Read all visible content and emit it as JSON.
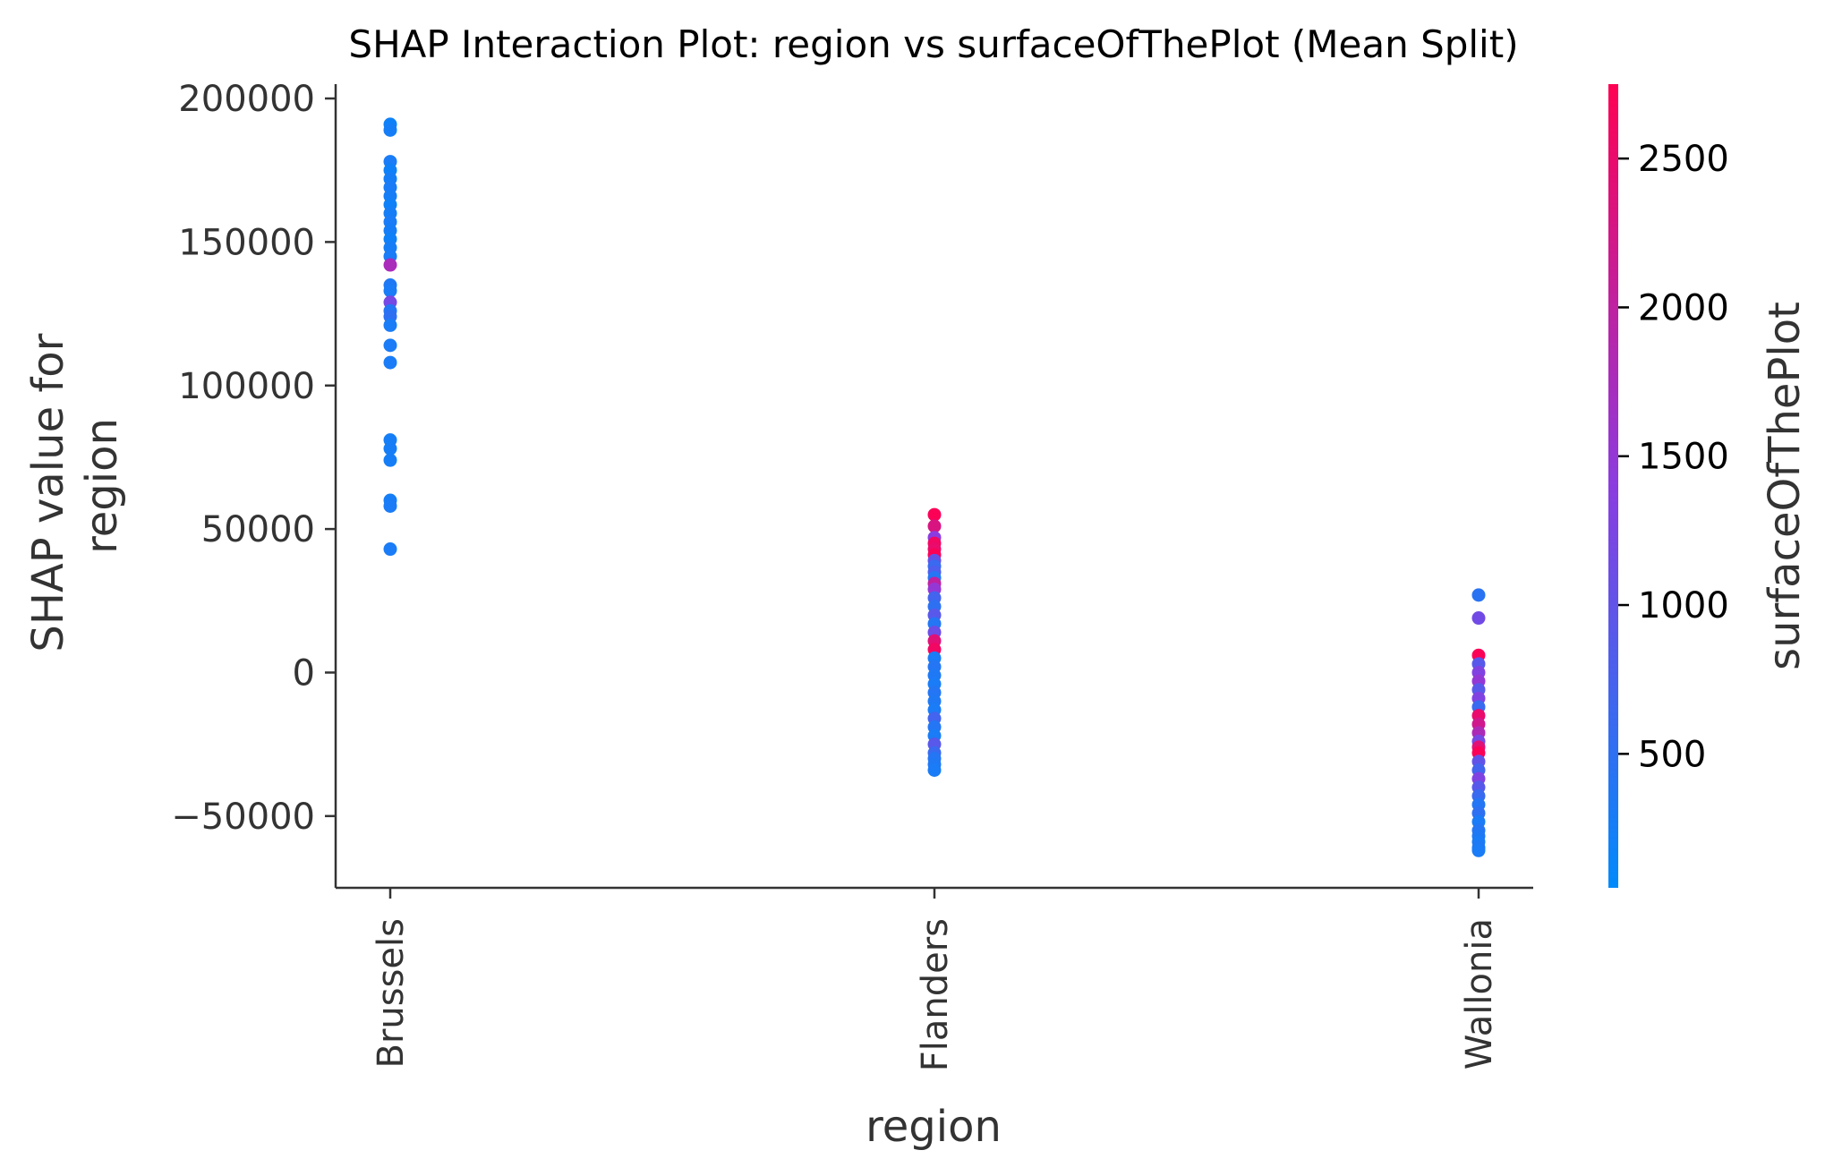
{
  "chart_data": {
    "type": "scatter",
    "title": "SHAP Interaction Plot: region vs surfaceOfThePlot (Mean Split)",
    "xlabel": "region",
    "ylabel_lines": [
      "SHAP value for",
      "region"
    ],
    "categories": [
      "Brussels",
      "Flanders",
      "Wallonia"
    ],
    "ylim": [
      -75000,
      205000
    ],
    "yticks": [
      -50000,
      0,
      50000,
      100000,
      150000,
      200000
    ],
    "ytick_labels": [
      "−50000",
      "0",
      "50000",
      "100000",
      "150000",
      "200000"
    ],
    "grid": false,
    "colorbar": {
      "label": "surfaceOfThePlot",
      "range": [
        50,
        2750
      ],
      "ticks": [
        500,
        1000,
        1500,
        2000,
        2500
      ],
      "tick_labels": [
        "500",
        "1000",
        "1500",
        "2000",
        "2500"
      ],
      "low_color": "#008afb",
      "high_color": "#ff0052",
      "mid_color": "#8b3ce0"
    },
    "points": [
      {
        "x": "Brussels",
        "y": 191000,
        "c": 200
      },
      {
        "x": "Brussels",
        "y": 189000,
        "c": 250
      },
      {
        "x": "Brussels",
        "y": 178000,
        "c": 300
      },
      {
        "x": "Brussels",
        "y": 175000,
        "c": 200
      },
      {
        "x": "Brussels",
        "y": 172000,
        "c": 250
      },
      {
        "x": "Brussels",
        "y": 169000,
        "c": 300
      },
      {
        "x": "Brussels",
        "y": 166000,
        "c": 250
      },
      {
        "x": "Brussels",
        "y": 163000,
        "c": 200
      },
      {
        "x": "Brussels",
        "y": 160000,
        "c": 250
      },
      {
        "x": "Brussels",
        "y": 157000,
        "c": 300
      },
      {
        "x": "Brussels",
        "y": 154000,
        "c": 250
      },
      {
        "x": "Brussels",
        "y": 151000,
        "c": 200
      },
      {
        "x": "Brussels",
        "y": 148000,
        "c": 250
      },
      {
        "x": "Brussels",
        "y": 145000,
        "c": 300
      },
      {
        "x": "Brussels",
        "y": 142000,
        "c": 1750
      },
      {
        "x": "Brussels",
        "y": 135000,
        "c": 350
      },
      {
        "x": "Brussels",
        "y": 133000,
        "c": 300
      },
      {
        "x": "Brussels",
        "y": 129000,
        "c": 1200
      },
      {
        "x": "Brussels",
        "y": 126000,
        "c": 400
      },
      {
        "x": "Brussels",
        "y": 124000,
        "c": 500
      },
      {
        "x": "Brussels",
        "y": 121000,
        "c": 300
      },
      {
        "x": "Brussels",
        "y": 114000,
        "c": 300
      },
      {
        "x": "Brussels",
        "y": 108000,
        "c": 300
      },
      {
        "x": "Brussels",
        "y": 81000,
        "c": 250
      },
      {
        "x": "Brussels",
        "y": 78000,
        "c": 250
      },
      {
        "x": "Brussels",
        "y": 74000,
        "c": 250
      },
      {
        "x": "Brussels",
        "y": 60000,
        "c": 250
      },
      {
        "x": "Brussels",
        "y": 58000,
        "c": 300
      },
      {
        "x": "Brussels",
        "y": 43000,
        "c": 300
      },
      {
        "x": "Flanders",
        "y": 55000,
        "c": 2700
      },
      {
        "x": "Flanders",
        "y": 51000,
        "c": 2300
      },
      {
        "x": "Flanders",
        "y": 47000,
        "c": 1400
      },
      {
        "x": "Flanders",
        "y": 45000,
        "c": 2600
      },
      {
        "x": "Flanders",
        "y": 43000,
        "c": 2500
      },
      {
        "x": "Flanders",
        "y": 41000,
        "c": 2700
      },
      {
        "x": "Flanders",
        "y": 39000,
        "c": 1000
      },
      {
        "x": "Flanders",
        "y": 37000,
        "c": 600
      },
      {
        "x": "Flanders",
        "y": 35000,
        "c": 800
      },
      {
        "x": "Flanders",
        "y": 33000,
        "c": 400
      },
      {
        "x": "Flanders",
        "y": 31000,
        "c": 2000
      },
      {
        "x": "Flanders",
        "y": 29000,
        "c": 1500
      },
      {
        "x": "Flanders",
        "y": 26000,
        "c": 700
      },
      {
        "x": "Flanders",
        "y": 23000,
        "c": 500
      },
      {
        "x": "Flanders",
        "y": 20000,
        "c": 900
      },
      {
        "x": "Flanders",
        "y": 17000,
        "c": 400
      },
      {
        "x": "Flanders",
        "y": 14000,
        "c": 1100
      },
      {
        "x": "Flanders",
        "y": 11000,
        "c": 2400
      },
      {
        "x": "Flanders",
        "y": 8000,
        "c": 2600
      },
      {
        "x": "Flanders",
        "y": 5000,
        "c": 300
      },
      {
        "x": "Flanders",
        "y": 2000,
        "c": 400
      },
      {
        "x": "Flanders",
        "y": -1000,
        "c": 350
      },
      {
        "x": "Flanders",
        "y": -4000,
        "c": 300
      },
      {
        "x": "Flanders",
        "y": -7000,
        "c": 400
      },
      {
        "x": "Flanders",
        "y": -10000,
        "c": 350
      },
      {
        "x": "Flanders",
        "y": -13000,
        "c": 300
      },
      {
        "x": "Flanders",
        "y": -16000,
        "c": 700
      },
      {
        "x": "Flanders",
        "y": -19000,
        "c": 400
      },
      {
        "x": "Flanders",
        "y": -22000,
        "c": 300
      },
      {
        "x": "Flanders",
        "y": -25000,
        "c": 900
      },
      {
        "x": "Flanders",
        "y": -28000,
        "c": 600
      },
      {
        "x": "Flanders",
        "y": -30000,
        "c": 400
      },
      {
        "x": "Flanders",
        "y": -32000,
        "c": 350
      },
      {
        "x": "Flanders",
        "y": -34000,
        "c": 300
      },
      {
        "x": "Wallonia",
        "y": 27000,
        "c": 450
      },
      {
        "x": "Wallonia",
        "y": 19000,
        "c": 1150
      },
      {
        "x": "Wallonia",
        "y": 6000,
        "c": 2700
      },
      {
        "x": "Wallonia",
        "y": 3000,
        "c": 900
      },
      {
        "x": "Wallonia",
        "y": 0,
        "c": 1300
      },
      {
        "x": "Wallonia",
        "y": -3000,
        "c": 1500
      },
      {
        "x": "Wallonia",
        "y": -6000,
        "c": 900
      },
      {
        "x": "Wallonia",
        "y": -9000,
        "c": 1300
      },
      {
        "x": "Wallonia",
        "y": -12000,
        "c": 600
      },
      {
        "x": "Wallonia",
        "y": -15000,
        "c": 2500
      },
      {
        "x": "Wallonia",
        "y": -18000,
        "c": 2200
      },
      {
        "x": "Wallonia",
        "y": -21000,
        "c": 1800
      },
      {
        "x": "Wallonia",
        "y": -24000,
        "c": 1200
      },
      {
        "x": "Wallonia",
        "y": -26000,
        "c": 2400
      },
      {
        "x": "Wallonia",
        "y": -28000,
        "c": 2700
      },
      {
        "x": "Wallonia",
        "y": -31000,
        "c": 1000
      },
      {
        "x": "Wallonia",
        "y": -34000,
        "c": 700
      },
      {
        "x": "Wallonia",
        "y": -37000,
        "c": 1300
      },
      {
        "x": "Wallonia",
        "y": -40000,
        "c": 900
      },
      {
        "x": "Wallonia",
        "y": -43000,
        "c": 600
      },
      {
        "x": "Wallonia",
        "y": -46000,
        "c": 400
      },
      {
        "x": "Wallonia",
        "y": -49000,
        "c": 500
      },
      {
        "x": "Wallonia",
        "y": -52000,
        "c": 300
      },
      {
        "x": "Wallonia",
        "y": -55000,
        "c": 400
      },
      {
        "x": "Wallonia",
        "y": -57000,
        "c": 350
      },
      {
        "x": "Wallonia",
        "y": -59000,
        "c": 300
      },
      {
        "x": "Wallonia",
        "y": -61000,
        "c": 350
      },
      {
        "x": "Wallonia",
        "y": -62000,
        "c": 300
      }
    ]
  }
}
